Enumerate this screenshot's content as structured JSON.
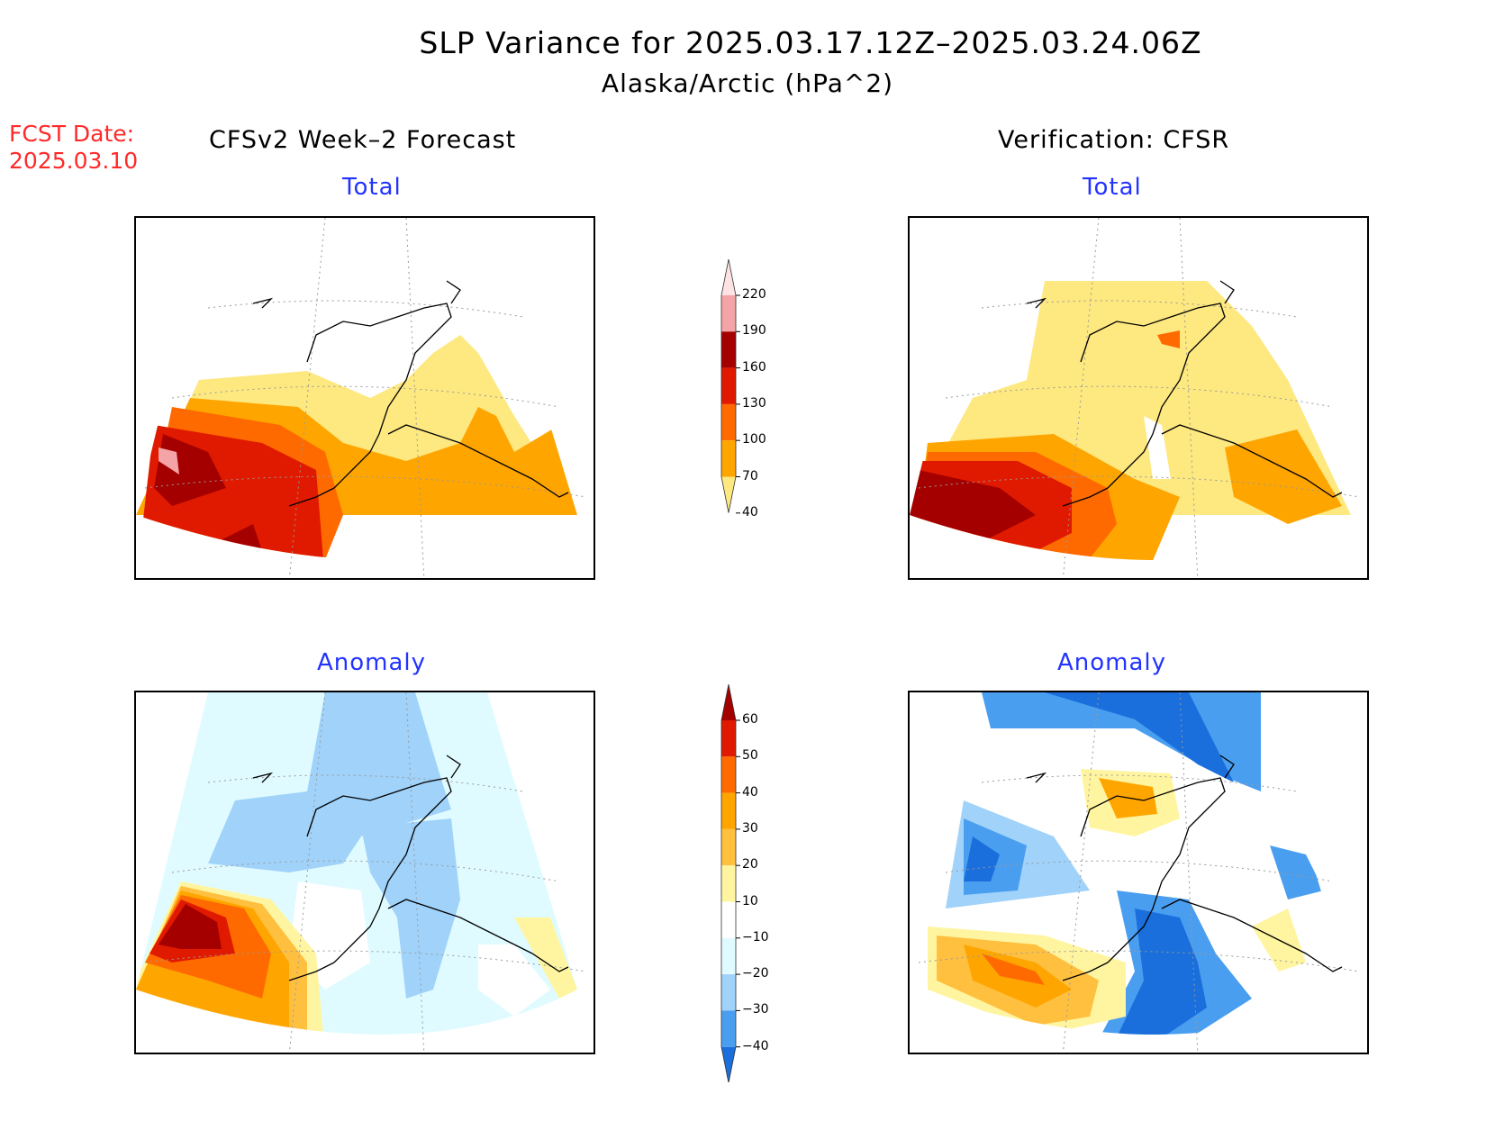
{
  "title": "SLP Variance for 2025.03.17.12Z–2025.03.24.06Z",
  "subtitle": "Alaska/Arctic (hPa^2)",
  "fcst_date_label": "FCST Date:",
  "fcst_date_value": "2025.03.10",
  "columns": {
    "left": "CFSv2 Week–2 Forecast",
    "right": "Verification: CFSR"
  },
  "panels": {
    "fcst_total": "Total",
    "obs_total": "Total",
    "fcst_anom": "Anomaly",
    "obs_anom": "Anomaly"
  },
  "colorbars": {
    "total": {
      "labels": [
        "220",
        "190",
        "160",
        "130",
        "100",
        "70",
        "40"
      ],
      "colors": [
        "#fde3e3",
        "#f4a3a6",
        "#a50000",
        "#e01a00",
        "#ff6a00",
        "#ffa500",
        "#fee880"
      ]
    },
    "anomaly": {
      "labels": [
        "60",
        "50",
        "40",
        "30",
        "20",
        "10",
        "−10",
        "−20",
        "−30",
        "−40"
      ],
      "colors": [
        "#a50000",
        "#e01a00",
        "#ff6a00",
        "#ffa500",
        "#ffc040",
        "#fff5a0",
        "#ffffff",
        "#e0fbff",
        "#a0d2fa",
        "#4a9ef0",
        "#1a6fdc"
      ]
    }
  }
}
